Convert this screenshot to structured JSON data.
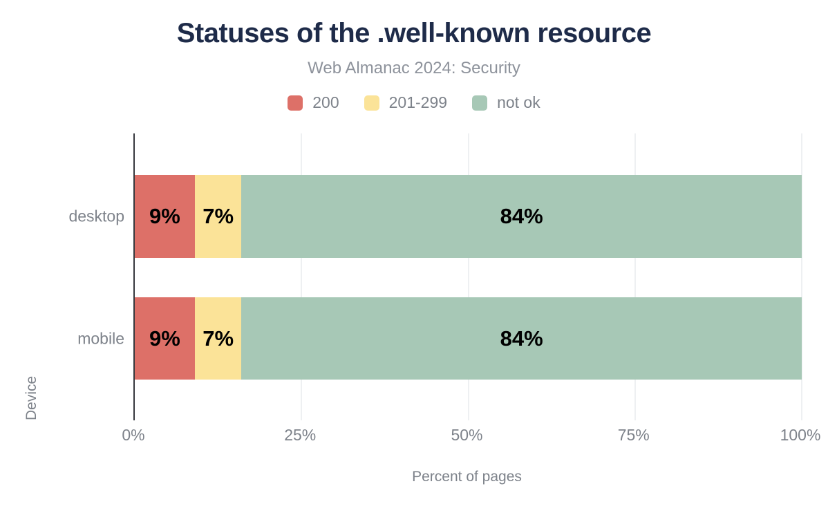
{
  "chart_data": {
    "type": "bar",
    "orientation": "horizontal",
    "stacked": true,
    "title": "Statuses of the .well-known resource",
    "subtitle": "Web Almanac 2024: Security",
    "xlabel": "Percent of pages",
    "ylabel": "Device",
    "xlim": [
      0,
      100
    ],
    "grid": "vertical-light",
    "legend_position": "top",
    "categories": [
      "desktop",
      "mobile"
    ],
    "series": [
      {
        "name": "200",
        "color": "#dd7068",
        "values": [
          9,
          9
        ]
      },
      {
        "name": "201-299",
        "color": "#fbe398",
        "values": [
          7,
          7
        ]
      },
      {
        "name": "not ok",
        "color": "#a7c8b6",
        "values": [
          84,
          84
        ]
      }
    ],
    "value_labels": [
      [
        "9%",
        "7%",
        "84%"
      ],
      [
        "9%",
        "7%",
        "84%"
      ]
    ],
    "xticks": [
      {
        "value": 0,
        "label": "0%"
      },
      {
        "value": 25,
        "label": "25%"
      },
      {
        "value": 50,
        "label": "50%"
      },
      {
        "value": 75,
        "label": "75%"
      },
      {
        "value": 100,
        "label": "100%"
      }
    ]
  },
  "colors": {
    "title": "#1e2b49",
    "subtitle": "#8d929b",
    "axis_text": "#7d828a",
    "bar_label": "#000000",
    "gridline": "#eef0f2",
    "axis_line": "#35383d",
    "background": "#ffffff"
  }
}
